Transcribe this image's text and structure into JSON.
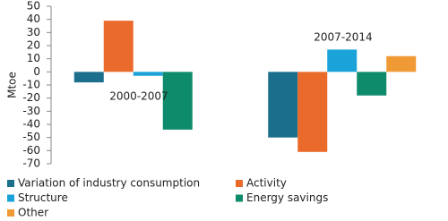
{
  "chart_data": {
    "type": "bar",
    "categories": [
      "2000-2007",
      "2007-2014"
    ],
    "y_label": "Mtoe",
    "series": [
      {
        "name": "Variation of industry consumption",
        "color": "#1b6f8c",
        "values": [
          -8,
          -50
        ]
      },
      {
        "name": "Activity",
        "color": "#ea6a2c",
        "values": [
          39,
          -61
        ]
      },
      {
        "name": "Structure",
        "color": "#1aa3d8",
        "values": [
          -3,
          17
        ]
      },
      {
        "name": "Energy savings",
        "color": "#0e8b6b",
        "values": [
          -44,
          -18
        ]
      },
      {
        "name": "Other",
        "color": "#f09a35",
        "values": [
          null,
          12
        ]
      }
    ],
    "ylim": [
      -70,
      50
    ],
    "yticks": [
      -70,
      -60,
      -50,
      -40,
      -30,
      -20,
      -10,
      0,
      10,
      20,
      30,
      40,
      50
    ],
    "grid": false
  }
}
